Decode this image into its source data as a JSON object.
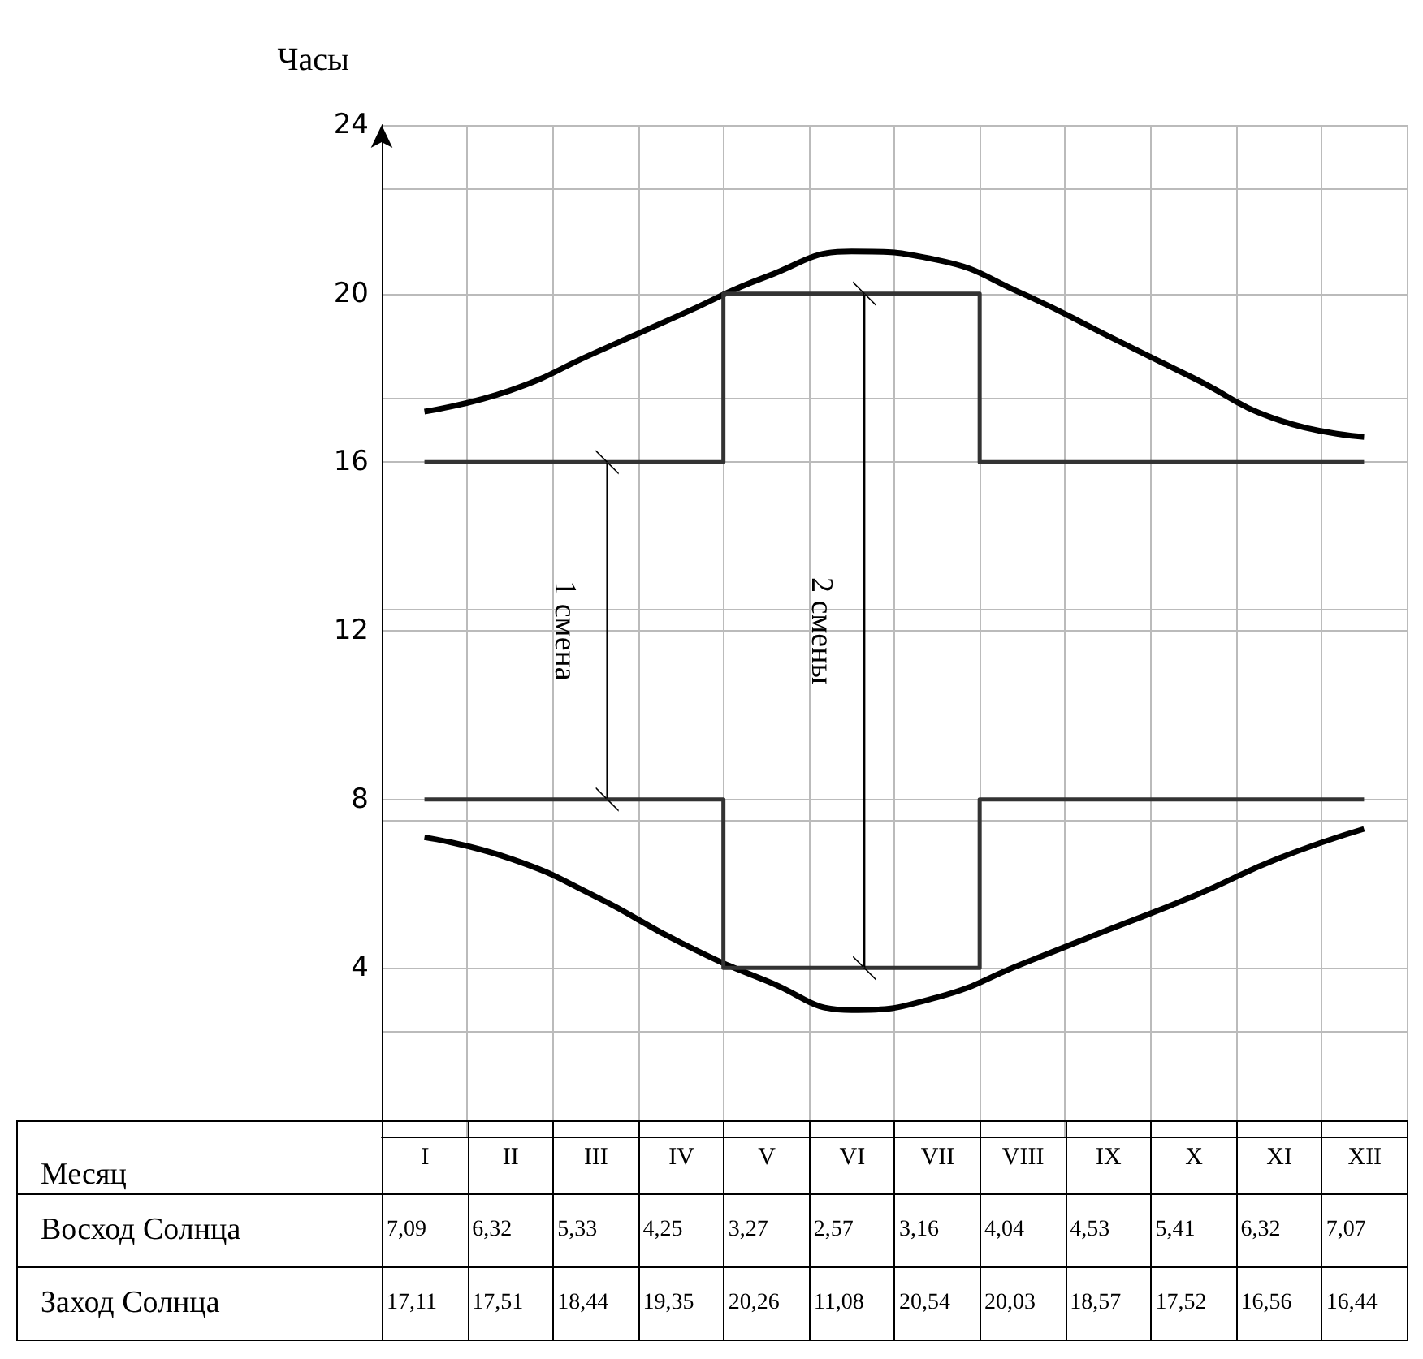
{
  "chart_data": {
    "type": "line",
    "ylabel": "Часы",
    "categories": [
      "I",
      "II",
      "III",
      "IV",
      "V",
      "VI",
      "VII",
      "VIII",
      "IX",
      "X",
      "XI",
      "XII"
    ],
    "series": [
      {
        "color": "#000000",
        "values": [
          7.1,
          6.6,
          5.7,
          4.6,
          3.7,
          3.0,
          3.3,
          4.1,
          4.9,
          5.7,
          6.6,
          7.3
        ]
      },
      {
        "color": "#000000",
        "values": [
          17.2,
          17.7,
          18.6,
          19.5,
          20.4,
          21.0,
          20.8,
          20.0,
          19.0,
          18.0,
          17.0,
          16.6
        ]
      },
      {
        "type": "step",
        "color": "#333333",
        "values": [
          8,
          8,
          8,
          8,
          4,
          4,
          4,
          8,
          8,
          8,
          8,
          8
        ]
      },
      {
        "type": "step",
        "color": "#333333",
        "values": [
          16,
          16,
          16,
          16,
          20,
          20,
          20,
          16,
          16,
          16,
          16,
          16
        ]
      }
    ],
    "annotations": [
      "1 смена",
      "2 смены",
      "Месяц",
      "Восход Солнца",
      "7,09",
      "6,32",
      "5,33",
      "4,25",
      "3,27",
      "2,57",
      "3,16",
      "4,04",
      "4,53",
      "5,41",
      "6,32",
      "7,07",
      "Заход Солнца",
      "17,11",
      "17,51",
      "18,44",
      "19,35",
      "20,26",
      "11,08",
      "20,54",
      "20,03",
      "18,57",
      "17,52",
      "16,56",
      "16,44"
    ],
    "ylim": [
      0,
      24
    ],
    "yticks": [
      {
        "value": 0,
        "label": null
      },
      4,
      8,
      12,
      16,
      20,
      24
    ],
    "grid": true,
    "marker": "none",
    "line_style": "solid"
  }
}
